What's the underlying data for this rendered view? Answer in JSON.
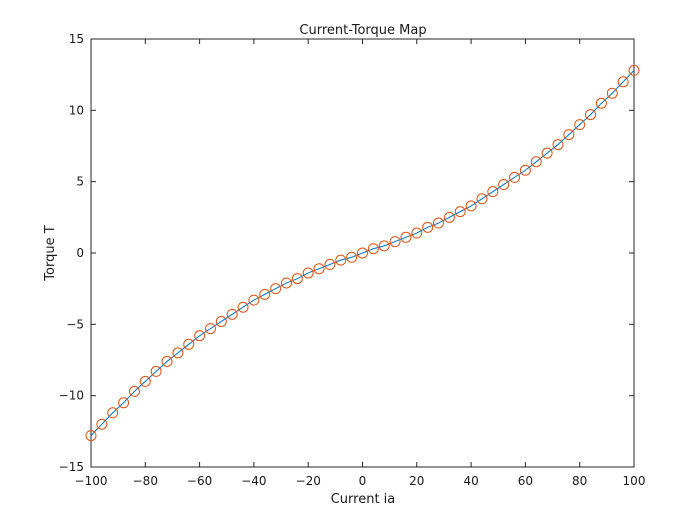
{
  "chart_data": {
    "type": "line",
    "title": "Current-Torque Map",
    "xlabel": "Current ia",
    "ylabel": "Torque T",
    "xlim": [
      -100,
      100
    ],
    "ylim": [
      -15,
      15
    ],
    "xticks": [
      -100,
      -80,
      -60,
      -40,
      -20,
      0,
      20,
      40,
      60,
      80,
      100
    ],
    "yticks": [
      -15,
      -10,
      -5,
      0,
      5,
      10,
      15
    ],
    "xtick_labels": [
      "−100",
      "−80",
      "−60",
      "−40",
      "−20",
      "0",
      "20",
      "40",
      "60",
      "80",
      "100"
    ],
    "ytick_labels": [
      "−15",
      "−10",
      "−5",
      "0",
      "5",
      "10",
      "15"
    ],
    "grid": false,
    "legend": "none",
    "series": [
      {
        "style": "line",
        "color": "#0072BD",
        "x": [
          -100,
          -96,
          -92,
          -88,
          -84,
          -80,
          -76,
          -72,
          -68,
          -64,
          -60,
          -56,
          -52,
          -48,
          -44,
          -40,
          -36,
          -32,
          -28,
          -24,
          -20,
          -16,
          -12,
          -8,
          -4,
          0,
          4,
          8,
          12,
          16,
          20,
          24,
          28,
          32,
          36,
          40,
          44,
          48,
          52,
          56,
          60,
          64,
          68,
          72,
          76,
          80,
          84,
          88,
          92,
          96,
          100
        ],
        "y": [
          -12.8,
          -12.0,
          -11.2,
          -10.5,
          -9.7,
          -9.0,
          -8.3,
          -7.6,
          -7.0,
          -6.4,
          -5.8,
          -5.3,
          -4.8,
          -4.3,
          -3.8,
          -3.3,
          -2.9,
          -2.5,
          -2.1,
          -1.8,
          -1.4,
          -1.1,
          -0.8,
          -0.5,
          -0.3,
          0.0,
          0.3,
          0.5,
          0.8,
          1.1,
          1.4,
          1.8,
          2.1,
          2.5,
          2.9,
          3.3,
          3.8,
          4.3,
          4.8,
          5.3,
          5.8,
          6.4,
          7.0,
          7.6,
          8.3,
          9.0,
          9.7,
          10.5,
          11.2,
          12.0,
          12.8
        ]
      },
      {
        "style": "markers",
        "marker": "circle",
        "color": "#D95319",
        "x": [
          -100,
          -96,
          -92,
          -88,
          -84,
          -80,
          -76,
          -72,
          -68,
          -64,
          -60,
          -56,
          -52,
          -48,
          -44,
          -40,
          -36,
          -32,
          -28,
          -24,
          -20,
          -16,
          -12,
          -8,
          -4,
          0,
          4,
          8,
          12,
          16,
          20,
          24,
          28,
          32,
          36,
          40,
          44,
          48,
          52,
          56,
          60,
          64,
          68,
          72,
          76,
          80,
          84,
          88,
          92,
          96,
          100
        ],
        "y": [
          -12.8,
          -12.0,
          -11.2,
          -10.5,
          -9.7,
          -9.0,
          -8.3,
          -7.6,
          -7.0,
          -6.4,
          -5.8,
          -5.3,
          -4.8,
          -4.3,
          -3.8,
          -3.3,
          -2.9,
          -2.5,
          -2.1,
          -1.8,
          -1.4,
          -1.1,
          -0.8,
          -0.5,
          -0.3,
          0.0,
          0.3,
          0.5,
          0.8,
          1.1,
          1.4,
          1.8,
          2.1,
          2.5,
          2.9,
          3.3,
          3.8,
          4.3,
          4.8,
          5.3,
          5.8,
          6.4,
          7.0,
          7.6,
          8.3,
          9.0,
          9.7,
          10.5,
          11.2,
          12.0,
          12.8
        ]
      }
    ]
  }
}
